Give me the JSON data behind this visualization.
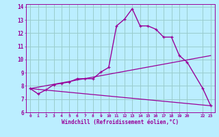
{
  "xlabel": "Windchill (Refroidissement éolien,°C)",
  "bg_color": "#bbeeff",
  "line_color": "#990099",
  "grid_color": "#99cccc",
  "xlim": [
    -0.5,
    23.5
  ],
  "ylim": [
    6,
    14.2
  ],
  "xtick_positions": [
    0,
    1,
    2,
    3,
    4,
    5,
    6,
    7,
    8,
    9,
    10,
    11,
    12,
    13,
    14,
    15,
    16,
    17,
    18,
    19,
    20,
    22,
    23
  ],
  "xtick_labels": [
    "0",
    "1",
    "2",
    "3",
    "4",
    "5",
    "6",
    "7",
    "8",
    "9",
    "10",
    "11",
    "12",
    "13",
    "14",
    "15",
    "16",
    "17",
    "18",
    "19",
    "20",
    "22",
    "23"
  ],
  "ytick_positions": [
    6,
    7,
    8,
    9,
    10,
    11,
    12,
    13,
    14
  ],
  "ytick_labels": [
    "6",
    "7",
    "8",
    "9",
    "10",
    "11",
    "12",
    "13",
    "14"
  ],
  "line1_x": [
    0,
    1,
    2,
    3,
    4,
    5,
    6,
    7,
    8,
    9,
    10,
    11,
    12,
    13,
    14,
    15,
    16,
    17,
    18,
    19,
    20,
    22,
    23
  ],
  "line1_y": [
    7.8,
    7.4,
    7.7,
    8.1,
    8.2,
    8.3,
    8.55,
    8.55,
    8.55,
    9.05,
    9.4,
    12.55,
    13.05,
    13.85,
    12.55,
    12.55,
    12.3,
    11.7,
    11.7,
    10.3,
    9.8,
    7.8,
    6.5
  ],
  "line2_x": [
    0,
    23
  ],
  "line2_y": [
    7.8,
    10.3
  ],
  "line3_x": [
    0,
    23
  ],
  "line3_y": [
    7.8,
    6.5
  ]
}
